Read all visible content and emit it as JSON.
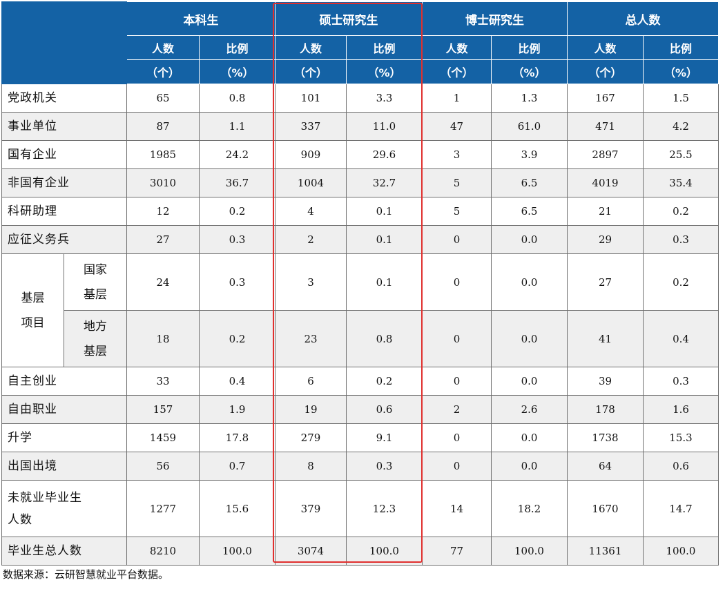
{
  "header": {
    "groups": [
      "本科生",
      "硕士研究生",
      "博士研究生",
      "总人数"
    ],
    "col_count": "人数",
    "col_ratio": "比例",
    "unit_count": "（个）",
    "unit_ratio": "（%）"
  },
  "rows": [
    {
      "label": "党政机关",
      "values": [
        "65",
        "0.8",
        "101",
        "3.3",
        "1",
        "1.3",
        "167",
        "1.5"
      ]
    },
    {
      "label": "事业单位",
      "values": [
        "87",
        "1.1",
        "337",
        "11.0",
        "47",
        "61.0",
        "471",
        "4.2"
      ]
    },
    {
      "label": "国有企业",
      "values": [
        "1985",
        "24.2",
        "909",
        "29.6",
        "3",
        "3.9",
        "2897",
        "25.5"
      ]
    },
    {
      "label": "非国有企业",
      "values": [
        "3010",
        "36.7",
        "1004",
        "32.7",
        "5",
        "6.5",
        "4019",
        "35.4"
      ]
    },
    {
      "label": "科研助理",
      "values": [
        "12",
        "0.2",
        "4",
        "0.1",
        "5",
        "6.5",
        "21",
        "0.2"
      ]
    },
    {
      "label": "应征义务兵",
      "values": [
        "27",
        "0.3",
        "2",
        "0.1",
        "0",
        "0.0",
        "29",
        "0.3"
      ]
    }
  ],
  "group_row": {
    "label_line1": "基层",
    "label_line2": "项目",
    "subrows": [
      {
        "label_line1": "国家",
        "label_line2": "基层",
        "values": [
          "24",
          "0.3",
          "3",
          "0.1",
          "0",
          "0.0",
          "27",
          "0.2"
        ]
      },
      {
        "label_line1": "地方",
        "label_line2": "基层",
        "values": [
          "18",
          "0.2",
          "23",
          "0.8",
          "0",
          "0.0",
          "41",
          "0.4"
        ]
      }
    ]
  },
  "rows2": [
    {
      "label": "自主创业",
      "values": [
        "33",
        "0.4",
        "6",
        "0.2",
        "0",
        "0.0",
        "39",
        "0.3"
      ]
    },
    {
      "label": "自由职业",
      "values": [
        "157",
        "1.9",
        "19",
        "0.6",
        "2",
        "2.6",
        "178",
        "1.6"
      ]
    },
    {
      "label": "升学",
      "values": [
        "1459",
        "17.8",
        "279",
        "9.1",
        "0",
        "0.0",
        "1738",
        "15.3"
      ]
    },
    {
      "label": "出国出境",
      "values": [
        "56",
        "0.7",
        "8",
        "0.3",
        "0",
        "0.0",
        "64",
        "0.6"
      ]
    },
    {
      "label_line1": "未就业毕业生",
      "label_line2": "人数",
      "values": [
        "1277",
        "15.6",
        "379",
        "12.3",
        "14",
        "18.2",
        "1670",
        "14.7"
      ]
    },
    {
      "label": "毕业生总人数",
      "values": [
        "8210",
        "100.0",
        "3074",
        "100.0",
        "77",
        "100.0",
        "11361",
        "100.0"
      ]
    }
  ],
  "source_note": "数据来源：云研智慧就业平台数据。",
  "colors": {
    "header_bg": "#1462a5",
    "highlight": "#e0302e",
    "zebra": "#efefef"
  }
}
